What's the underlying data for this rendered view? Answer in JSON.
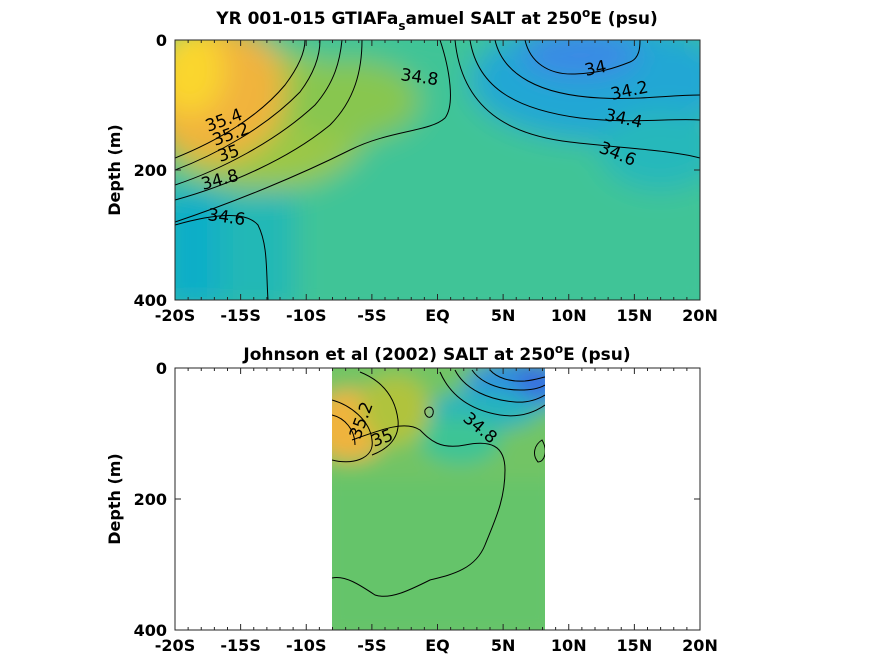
{
  "chart_data": [
    {
      "type": "heatmap",
      "title_parts": [
        "YR 001-015 GTIAFa",
        "s",
        "amuel SALT at 250",
        "o",
        "E (psu)"
      ],
      "ylabel": "Depth (m)",
      "x_ticks": [
        "-20S",
        "-15S",
        "-10S",
        "-5S",
        "EQ",
        "5N",
        "10N",
        "15N",
        "20N"
      ],
      "y_ticks": [
        "0",
        "200",
        "400"
      ],
      "xlim": [
        -20,
        20
      ],
      "ylim": [
        0,
        400
      ],
      "colormap": "parula",
      "contour_labels": [
        "35.4",
        "35.2",
        "35",
        "34.8",
        "34.6",
        "34.8",
        "34",
        "34.2",
        "34.4",
        "34.6"
      ]
    },
    {
      "type": "heatmap",
      "title_parts": [
        "Johnson et al (2002) SALT at 250",
        "o",
        "E (psu)"
      ],
      "ylabel": "Depth (m)",
      "x_ticks": [
        "-20S",
        "-15S",
        "-10S",
        "-5S",
        "EQ",
        "5N",
        "10N",
        "15N",
        "20N"
      ],
      "y_ticks": [
        "0",
        "200",
        "400"
      ],
      "xlim": [
        -20,
        20
      ],
      "ylim": [
        0,
        400
      ],
      "data_extent_x": [
        -8,
        8.3
      ],
      "colormap": "parula",
      "contour_labels": [
        "35.2",
        "35",
        "34.8"
      ]
    }
  ]
}
